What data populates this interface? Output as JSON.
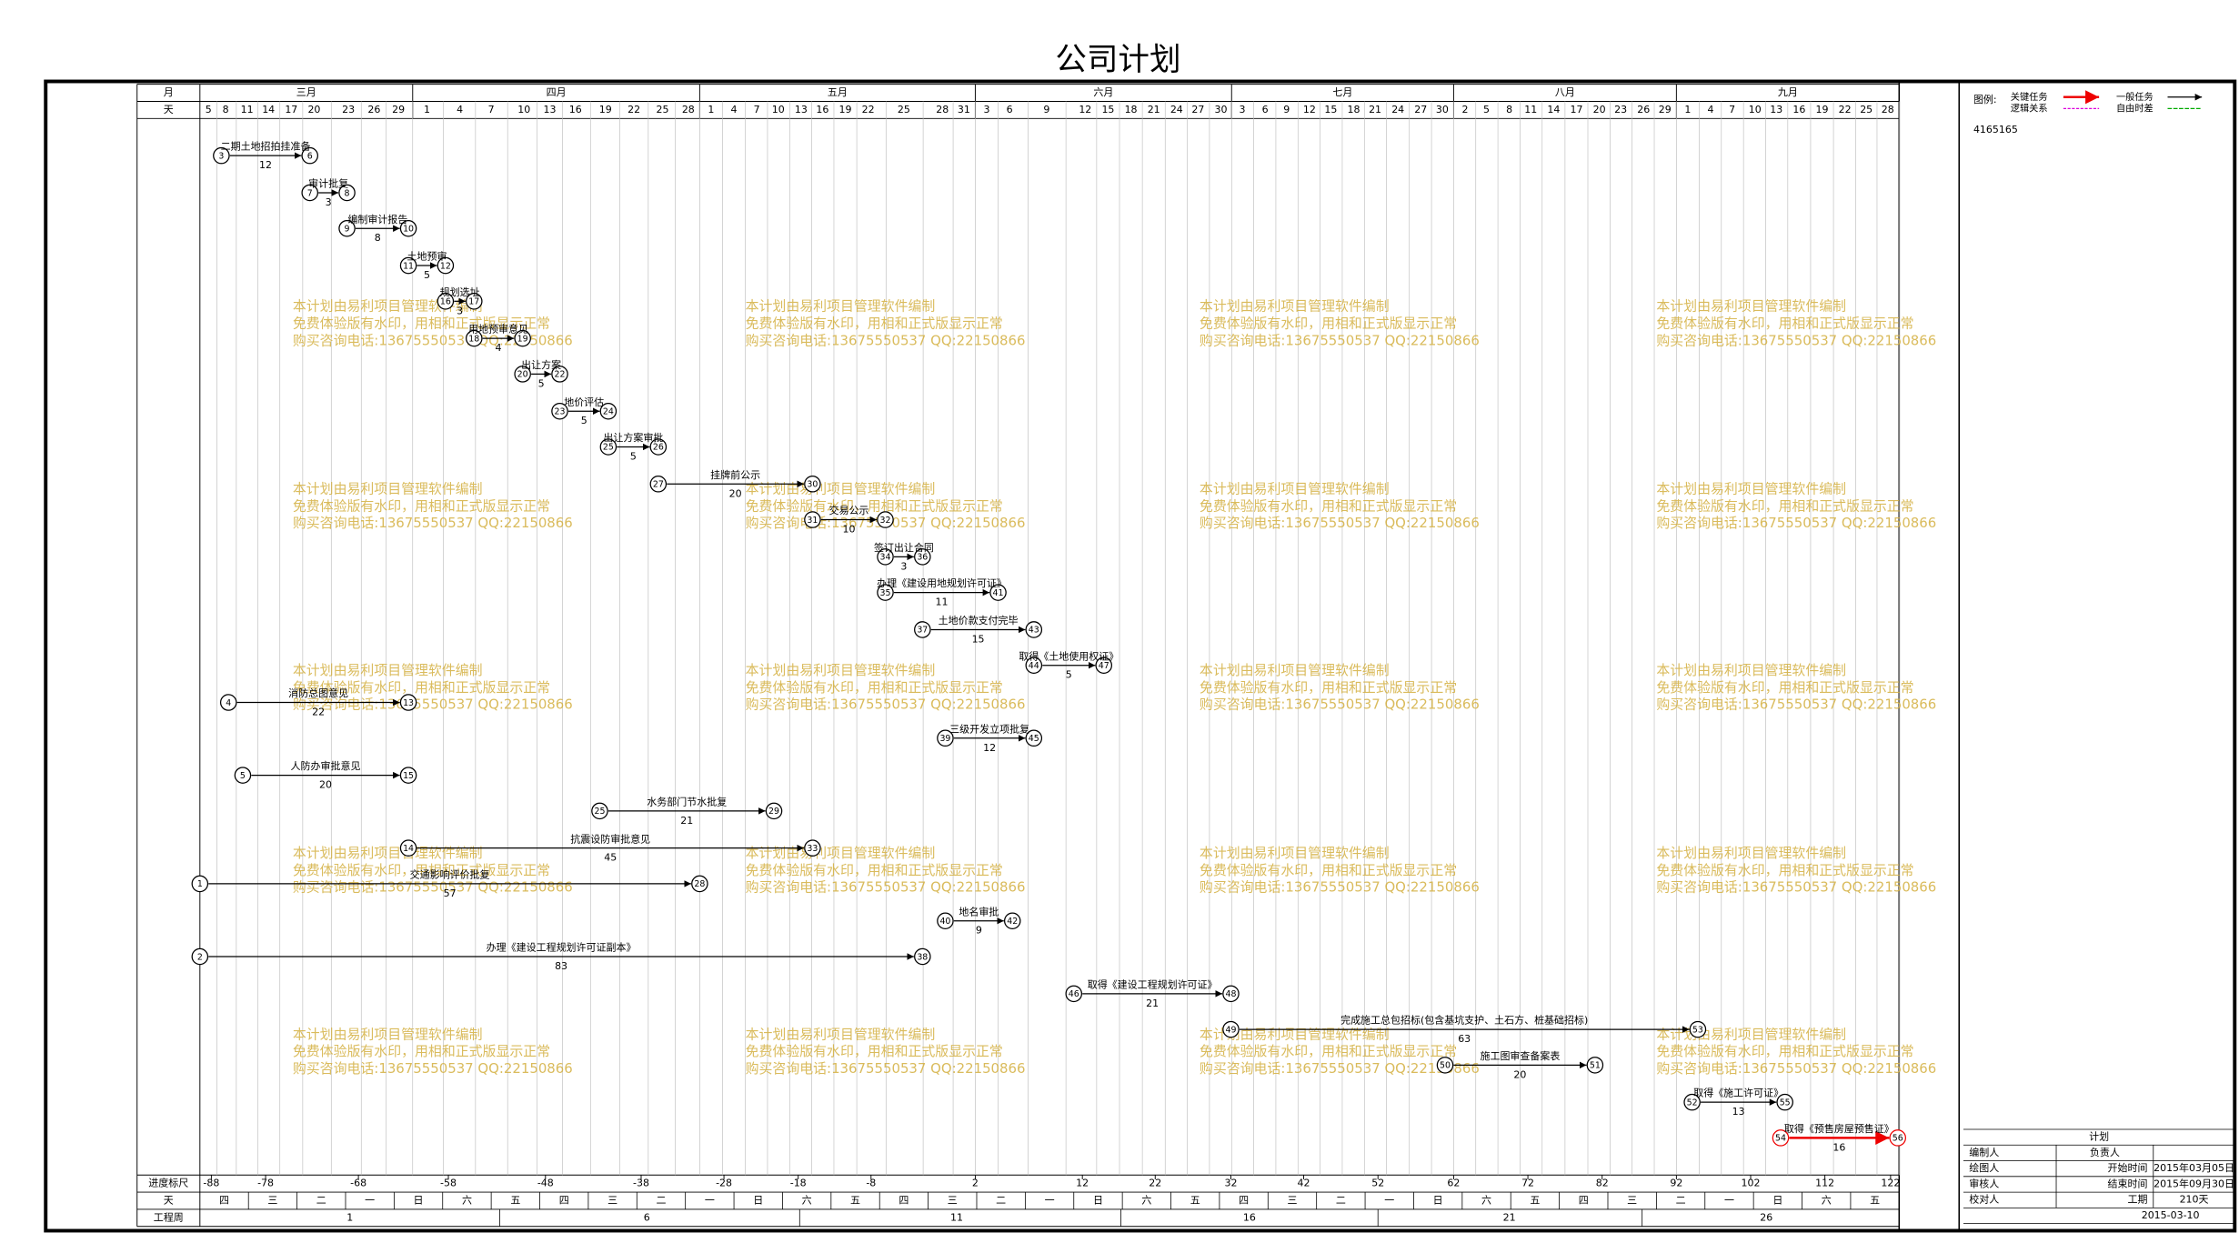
{
  "title": "公司计划",
  "header": {
    "month_label": "月",
    "day_label": "天",
    "months": [
      "三月",
      "四月",
      "五月",
      "六月",
      "七月",
      "八月",
      "九月"
    ],
    "days": [
      5,
      8,
      11,
      14,
      17,
      20,
      23,
      26,
      29,
      1,
      4,
      7,
      10,
      13,
      16,
      19,
      22,
      25,
      28,
      1,
      4,
      7,
      10,
      13,
      16,
      19,
      22,
      25,
      28,
      31,
      3,
      6,
      9,
      12,
      15,
      18,
      21,
      24,
      27,
      30,
      3,
      6,
      9,
      12,
      15,
      18,
      21,
      24,
      27,
      30,
      2,
      5,
      8,
      11,
      14,
      17,
      20,
      23,
      26,
      29,
      1,
      4,
      7,
      10,
      13,
      16,
      19,
      22,
      25,
      28
    ]
  },
  "tasks": [
    {
      "from": "3",
      "to": "6",
      "name": "二期土地招拍挂准备",
      "duration": 12
    },
    {
      "from": "7",
      "to": "8",
      "name": "审计批复",
      "duration": 3
    },
    {
      "from": "9",
      "to": "10",
      "name": "编制审计报告",
      "duration": 8
    },
    {
      "from": "11",
      "to": "12",
      "name": "土地预审",
      "duration": 5
    },
    {
      "from": "16",
      "to": "17",
      "name": "规划选址",
      "duration": 3
    },
    {
      "from": "18",
      "to": "19",
      "name": "用地预审意见",
      "duration": 4
    },
    {
      "from": "20",
      "to": "22",
      "name": "出让方案",
      "duration": 5
    },
    {
      "from": "23",
      "to": "24",
      "name": "地价评估",
      "duration": 5
    },
    {
      "from": "25",
      "to": "26",
      "name": "出让方案审批",
      "duration": 5
    },
    {
      "from": "27",
      "to": "30",
      "name": "挂牌前公示",
      "duration": 20
    },
    {
      "from": "31",
      "to": "32",
      "name": "交易公示",
      "duration": 10
    },
    {
      "from": "34",
      "to": "36",
      "name": "签订出让合同",
      "duration": 3
    },
    {
      "from": "35",
      "to": "41",
      "name": "办理《建设用地规划许可证》",
      "duration": 11
    },
    {
      "from": "37",
      "to": "43",
      "name": "土地价款支付完毕",
      "duration": 15
    },
    {
      "from": "44",
      "to": "47",
      "name": "取得《土地使用权证》",
      "duration": 5
    },
    {
      "from": "4",
      "to": "13",
      "name": "消防总图意见",
      "duration": 22
    },
    {
      "from": "39",
      "to": "45",
      "name": "三级开发立项批复",
      "duration": 12
    },
    {
      "from": "5",
      "to": "15",
      "name": "人防办审批意见",
      "duration": 20
    },
    {
      "from": "25",
      "to": "29",
      "name": "水务部门节水批复",
      "duration": 21
    },
    {
      "from": "14",
      "to": "33",
      "name": "抗震设防审批意见",
      "duration": 45
    },
    {
      "from": "1",
      "to": "28",
      "name": "交通影响评价批复",
      "duration": 57
    },
    {
      "from": "40",
      "to": "42",
      "name": "地名审批",
      "duration": 9
    },
    {
      "from": "2",
      "to": "38",
      "name": "办理《建设工程规划许可证副本》",
      "duration": 83
    },
    {
      "from": "46",
      "to": "48",
      "name": "取得《建设工程规划许可证》",
      "duration": 21
    },
    {
      "from": "49",
      "to": "53",
      "name": "完成施工总包招标(包含基坑支护、土石方、桩基础招标)",
      "duration": 63
    },
    {
      "from": "50",
      "to": "51",
      "name": "施工图审查备案表",
      "duration": 20
    },
    {
      "from": "52",
      "to": "55",
      "name": "取得《施工许可证》",
      "duration": 13
    },
    {
      "from": "54",
      "to": "56",
      "name": "取得《预售房屋预售证》",
      "duration": 16,
      "critical": true
    }
  ],
  "footer": {
    "scale_label": "进度标尺",
    "scale": [
      -88,
      -78,
      -68,
      -58,
      -48,
      -38,
      -28,
      -18,
      -8,
      2,
      12,
      22,
      32,
      42,
      52,
      62,
      72,
      82,
      92,
      102,
      112,
      122
    ],
    "weekday_label": "天",
    "weekdays": [
      "四",
      "三",
      "二",
      "一",
      "日",
      "六",
      "五",
      "四",
      "三",
      "二",
      "一",
      "日",
      "六",
      "五",
      "四",
      "三",
      "二",
      "一",
      "日",
      "六",
      "五",
      "四",
      "三",
      "二",
      "一",
      "日",
      "六",
      "五",
      "四",
      "三",
      "二",
      "一",
      "日",
      "六",
      "五"
    ],
    "week_label": "工程周",
    "weeks": [
      1,
      6,
      11,
      16,
      21,
      26
    ]
  },
  "watermark": [
    "本计划由易利项目管理软件编制",
    "免费体验版有水印，用相和正式版显示正常",
    "购买咨询电话:13675550537 QQ:22150866"
  ],
  "legend": {
    "title": "图例:",
    "critical": "关键任务",
    "normal": "一般任务",
    "logic": "逻辑关系",
    "float": "自由时差",
    "code": "4165165"
  },
  "info": {
    "title": "计划",
    "editor": "编制人",
    "owner": "负责人",
    "drawer": "绘图人",
    "start_label": "开始时间",
    "start": "2015年03月05日",
    "reviewer": "审核人",
    "end_label": "结束时间",
    "end": "2015年09月30日",
    "checker": "校对人",
    "duration_label": "工期",
    "duration": "210天",
    "date": "2015-03-10"
  }
}
